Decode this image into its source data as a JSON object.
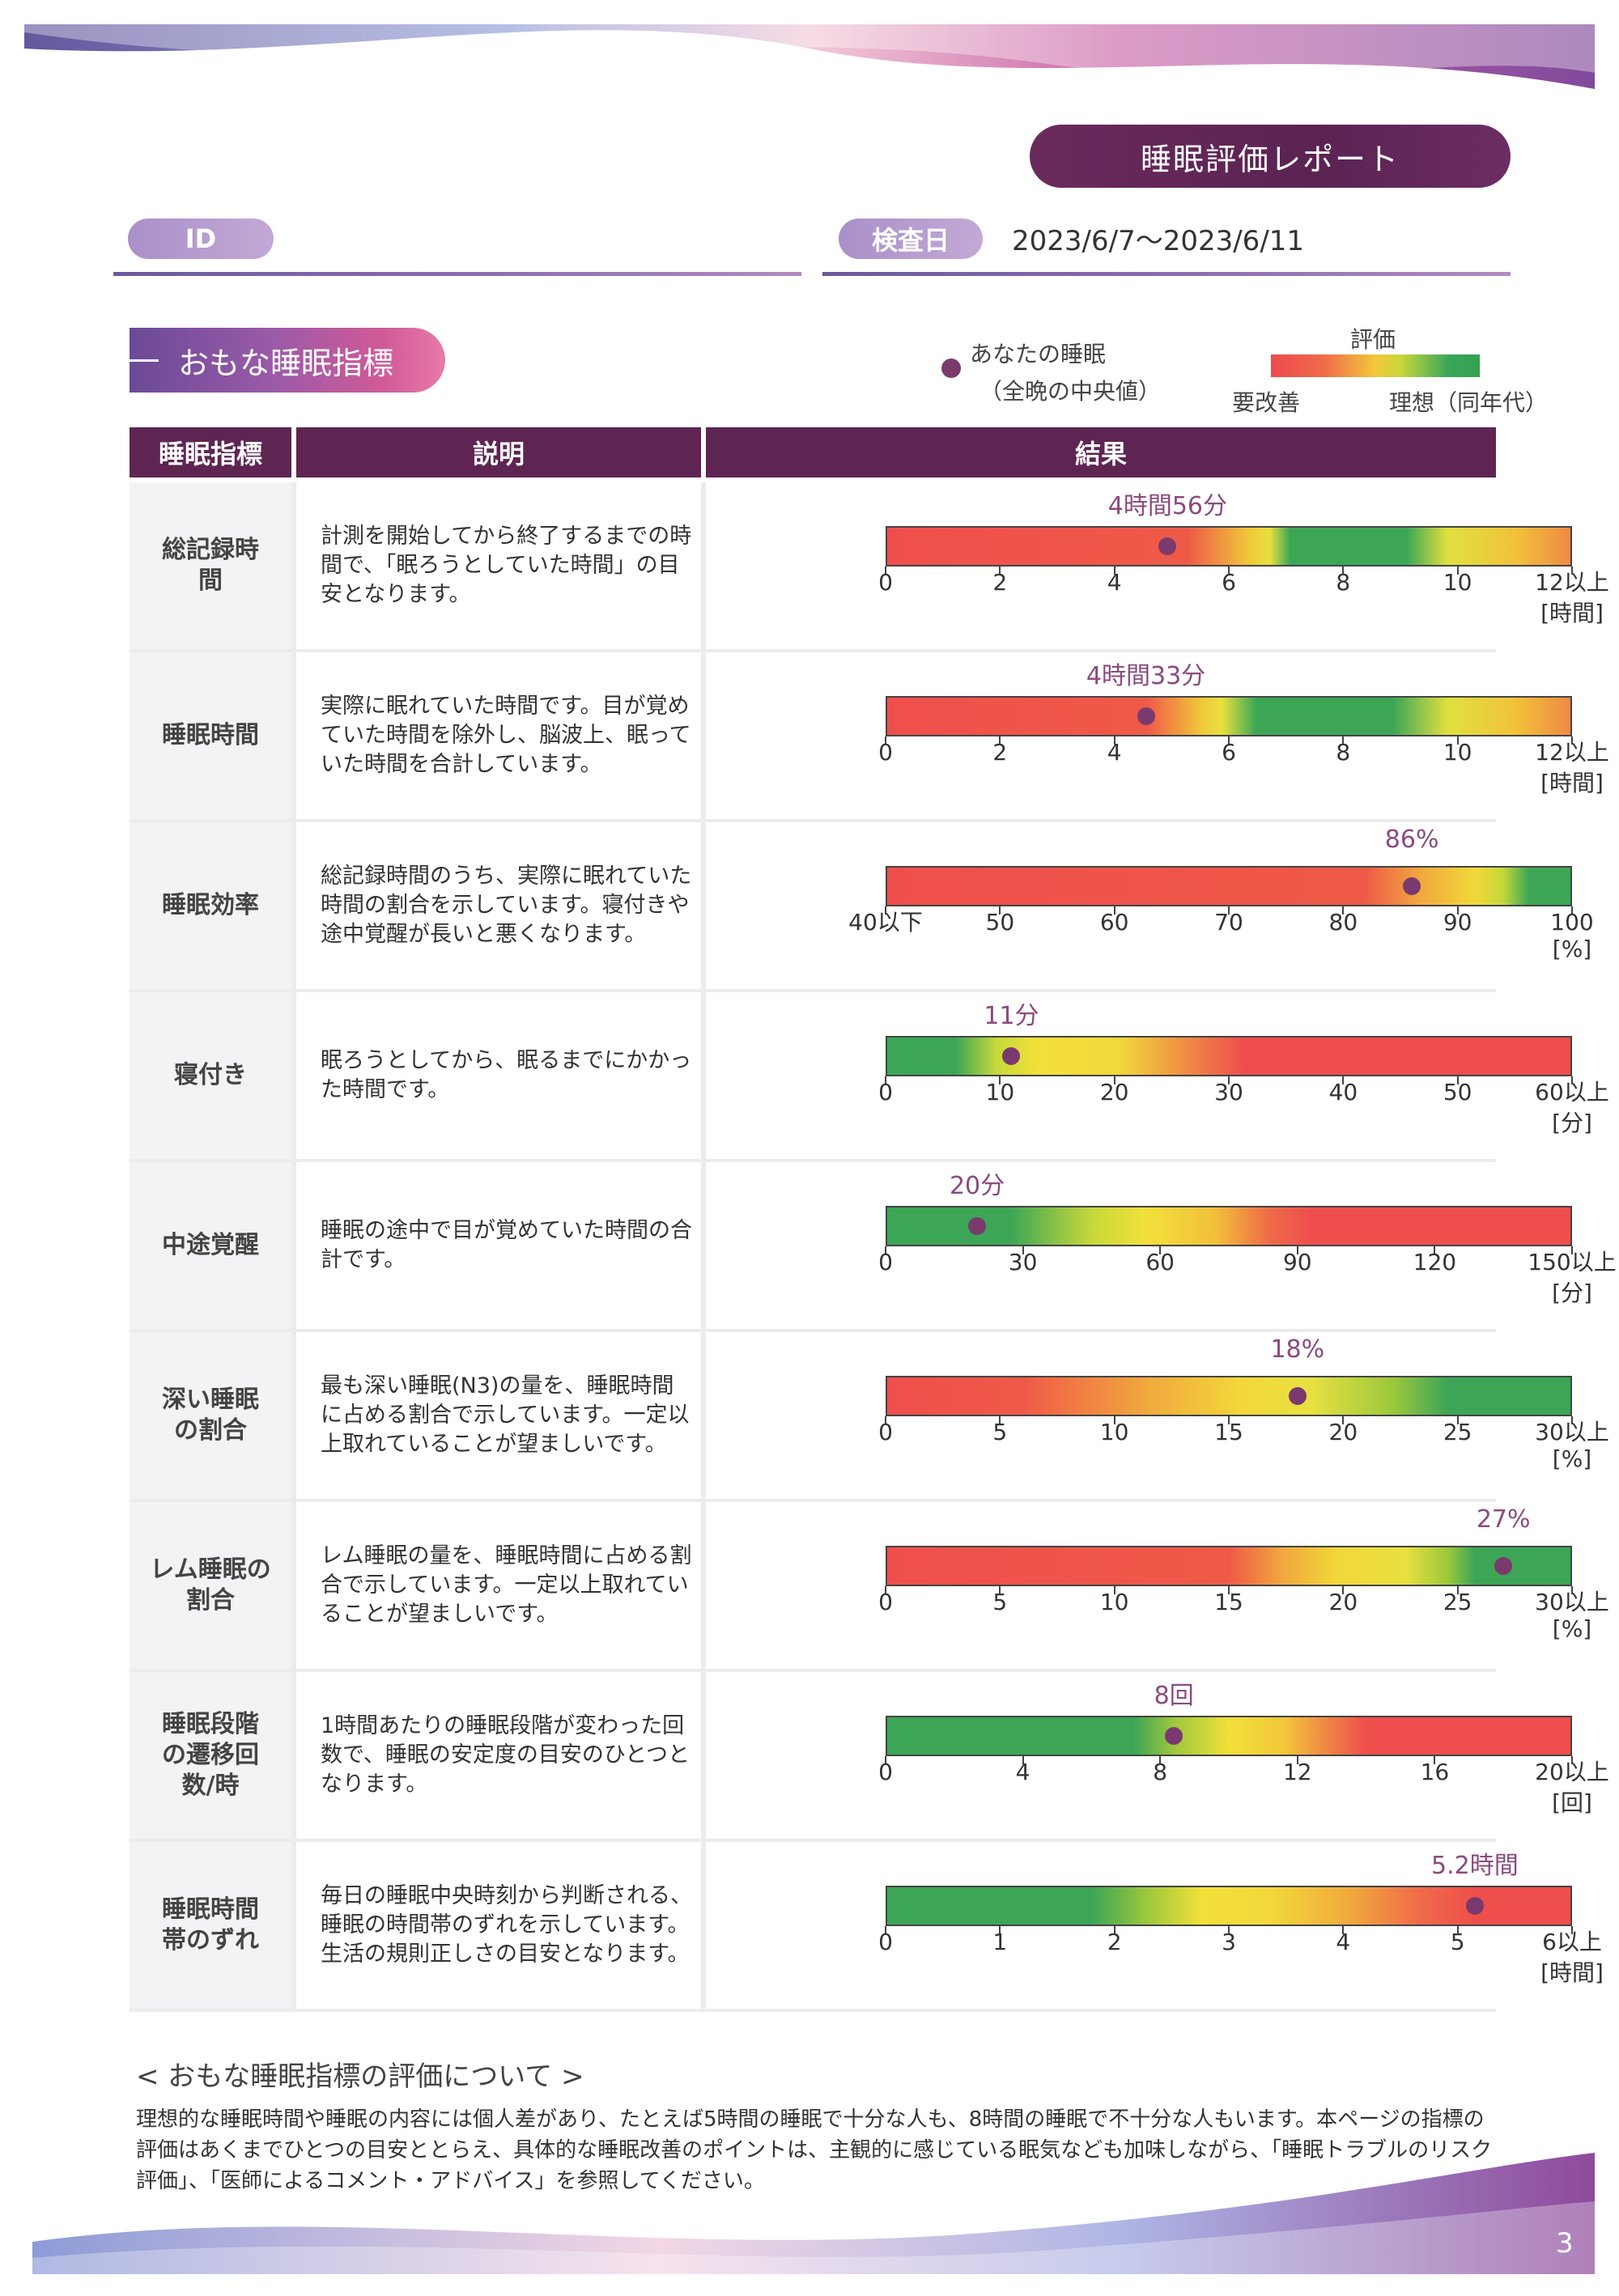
{
  "header": {
    "report_title": "睡眠評価レポート",
    "id_label": "ID",
    "exam_label": "検査日",
    "exam_date": "2023/6/7〜2023/6/11"
  },
  "section": {
    "title": "おもな睡眠指標",
    "legend_dot_line1": "あなたの睡眠",
    "legend_dot_line2": "（全晩の中央値）",
    "legend_eval": "評価",
    "legend_bad": "要改善",
    "legend_good": "理想（同年代）"
  },
  "table": {
    "col_name": "睡眠指標",
    "col_desc": "説明",
    "col_result": "結果",
    "rows": [
      {
        "name": "総記録時\n間",
        "desc": "計測を開始してから終了するまでの時間で、「眠ろうとしていた時間」の目安となります。",
        "value_label": "4時間56分",
        "value": 4.93,
        "min": 0,
        "max": 12,
        "ticks": [
          "0",
          "2",
          "4",
          "6",
          "8",
          "10",
          "12以上"
        ],
        "unit": "[時間]",
        "gradient": [
          [
            "#ef4f4c",
            0
          ],
          [
            "#ef5a48",
            0.44
          ],
          [
            "#f0c83a",
            0.53
          ],
          [
            "#e8e040",
            0.56
          ],
          [
            "#3ca656",
            0.59
          ],
          [
            "#3ca656",
            0.76
          ],
          [
            "#e0e040",
            0.82
          ],
          [
            "#f1c23a",
            0.92
          ],
          [
            "#ef8a44",
            1
          ]
        ]
      },
      {
        "name": "睡眠時間",
        "desc": "実際に眠れていた時間です。目が覚めていた時間を除外し、脳波上、眠っていた時間を合計しています。",
        "value_label": "4時間33分",
        "value": 4.55,
        "min": 0,
        "max": 12,
        "ticks": [
          "0",
          "2",
          "4",
          "6",
          "8",
          "10",
          "12以上"
        ],
        "unit": "[時間]",
        "gradient": [
          [
            "#ef4f4c",
            0
          ],
          [
            "#ef5a48",
            0.38
          ],
          [
            "#f0c83a",
            0.46
          ],
          [
            "#e8e040",
            0.49
          ],
          [
            "#3ca656",
            0.54
          ],
          [
            "#3ca656",
            0.74
          ],
          [
            "#e0e040",
            0.82
          ],
          [
            "#f1c23a",
            0.92
          ],
          [
            "#ef8a44",
            1
          ]
        ]
      },
      {
        "name": "睡眠効率",
        "desc": "総記録時間のうち、実際に眠れていた時間の割合を示しています。寝付きや途中覚醒が長いと悪くなります。",
        "value_label": "86%",
        "value": 86,
        "min": 40,
        "max": 100,
        "ticks": [
          "40以下",
          "50",
          "60",
          "70",
          "80",
          "90",
          "100"
        ],
        "unit": "[%]",
        "gradient": [
          [
            "#ef4f4c",
            0
          ],
          [
            "#ef5a48",
            0.7
          ],
          [
            "#f1a83e",
            0.78
          ],
          [
            "#f2d83a",
            0.86
          ],
          [
            "#c8d83a",
            0.9
          ],
          [
            "#3ca656",
            0.94
          ],
          [
            "#3ca656",
            1
          ]
        ]
      },
      {
        "name": "寝付き",
        "desc": "眠ろうとしてから、眠るまでにかかった時間です。",
        "value_label": "11分",
        "value": 11,
        "min": 0,
        "max": 60,
        "ticks": [
          "0",
          "10",
          "20",
          "30",
          "40",
          "50",
          "60以上"
        ],
        "unit": "[分]",
        "gradient": [
          [
            "#3ca656",
            0
          ],
          [
            "#3ca656",
            0.1
          ],
          [
            "#c8d83a",
            0.16
          ],
          [
            "#f2e03a",
            0.22
          ],
          [
            "#f2d83a",
            0.34
          ],
          [
            "#ef8a44",
            0.44
          ],
          [
            "#ef4f4c",
            0.52
          ],
          [
            "#ef4f4c",
            1
          ]
        ]
      },
      {
        "name": "中途覚醒",
        "desc": "睡眠の途中で目が覚めていた時間の合計です。",
        "value_label": "20分",
        "value": 20,
        "min": 0,
        "max": 150,
        "ticks": [
          "0",
          "30",
          "60",
          "90",
          "120",
          "150以上"
        ],
        "unit": "[分]",
        "gradient": [
          [
            "#3ca656",
            0
          ],
          [
            "#3ca656",
            0.18
          ],
          [
            "#c8d83a",
            0.3
          ],
          [
            "#f2e03a",
            0.38
          ],
          [
            "#f2c03a",
            0.48
          ],
          [
            "#ef6a48",
            0.56
          ],
          [
            "#ef4f4c",
            0.62
          ],
          [
            "#ef4f4c",
            1
          ]
        ]
      },
      {
        "name": "深い睡眠\nの割合",
        "desc": "最も深い睡眠(N3)の量を、睡眠時間に占める割合で示しています。一定以上取れていることが望ましいです。",
        "value_label": "18%",
        "value": 18,
        "min": 0,
        "max": 30,
        "ticks": [
          "0",
          "5",
          "10",
          "15",
          "20",
          "25",
          "30以上"
        ],
        "unit": "[%]",
        "gradient": [
          [
            "#ef4f4c",
            0
          ],
          [
            "#ef5a48",
            0.2
          ],
          [
            "#f1a83e",
            0.38
          ],
          [
            "#f2d83a",
            0.52
          ],
          [
            "#e8e040",
            0.62
          ],
          [
            "#9cc83c",
            0.74
          ],
          [
            "#3ca656",
            0.82
          ],
          [
            "#3ca656",
            1
          ]
        ]
      },
      {
        "name": "レム睡眠の\n割合",
        "desc": "レム睡眠の量を、睡眠時間に占める割合で示しています。一定以上取れていることが望ましいです。",
        "value_label": "27%",
        "value": 27,
        "min": 0,
        "max": 30,
        "ticks": [
          "0",
          "5",
          "10",
          "15",
          "20",
          "25",
          "30以上"
        ],
        "unit": "[%]",
        "gradient": [
          [
            "#ef4f4c",
            0
          ],
          [
            "#ef5a48",
            0.5
          ],
          [
            "#f1a83e",
            0.58
          ],
          [
            "#f2d83a",
            0.66
          ],
          [
            "#e8e040",
            0.76
          ],
          [
            "#9cc83c",
            0.82
          ],
          [
            "#3ca656",
            0.86
          ],
          [
            "#3ca656",
            1
          ]
        ]
      },
      {
        "name": "睡眠段階\nの遷移回\n数/時",
        "desc": "1時間あたりの睡眠段階が変わった回数で、睡眠の安定度の目安のひとつとなります。",
        "value_label": "8回",
        "value": 8.4,
        "min": 0,
        "max": 20,
        "ticks": [
          "0",
          "4",
          "8",
          "12",
          "16",
          "20以上"
        ],
        "unit": "[回]",
        "gradient": [
          [
            "#3ca656",
            0
          ],
          [
            "#3ca656",
            0.36
          ],
          [
            "#9cc83c",
            0.42
          ],
          [
            "#f2e03a",
            0.5
          ],
          [
            "#f2c83a",
            0.58
          ],
          [
            "#ef8a44",
            0.64
          ],
          [
            "#ef4f4c",
            0.7
          ],
          [
            "#ef4f4c",
            1
          ]
        ]
      },
      {
        "name": "睡眠時間\n帯のずれ",
        "desc": "毎日の睡眠中央時刻から判断される、睡眠の時間帯のずれを示しています。生活の規則正しさの目安となります。",
        "value_label": "5.2時間",
        "value": 5.15,
        "min": 0,
        "max": 6,
        "ticks": [
          "0",
          "1",
          "2",
          "3",
          "4",
          "5",
          "6以上"
        ],
        "unit": "[時間]",
        "gradient": [
          [
            "#3ca656",
            0
          ],
          [
            "#3ca656",
            0.3
          ],
          [
            "#9cc83c",
            0.38
          ],
          [
            "#f2e03a",
            0.46
          ],
          [
            "#f2d83a",
            0.56
          ],
          [
            "#f1a83e",
            0.68
          ],
          [
            "#ef6a48",
            0.78
          ],
          [
            "#ef4f4c",
            0.86
          ],
          [
            "#ef4f4c",
            1
          ]
        ]
      }
    ]
  },
  "note": {
    "title": "< おもな睡眠指標の評価について >",
    "body": "理想的な睡眠時間や睡眠の内容には個人差があり、たとえば5時間の睡眠で十分な人も、8時間の睡眠で不十分な人もいます。本ページの指標の評価はあくまでひとつの目安ととらえ、具体的な睡眠改善のポイントは、主観的に感じている眠気なども加味しながら、「睡眠トラブルのリスク評価」、「医師によるコメント・アドバイス」を参照してください。"
  },
  "footer": {
    "page_number": "3"
  }
}
